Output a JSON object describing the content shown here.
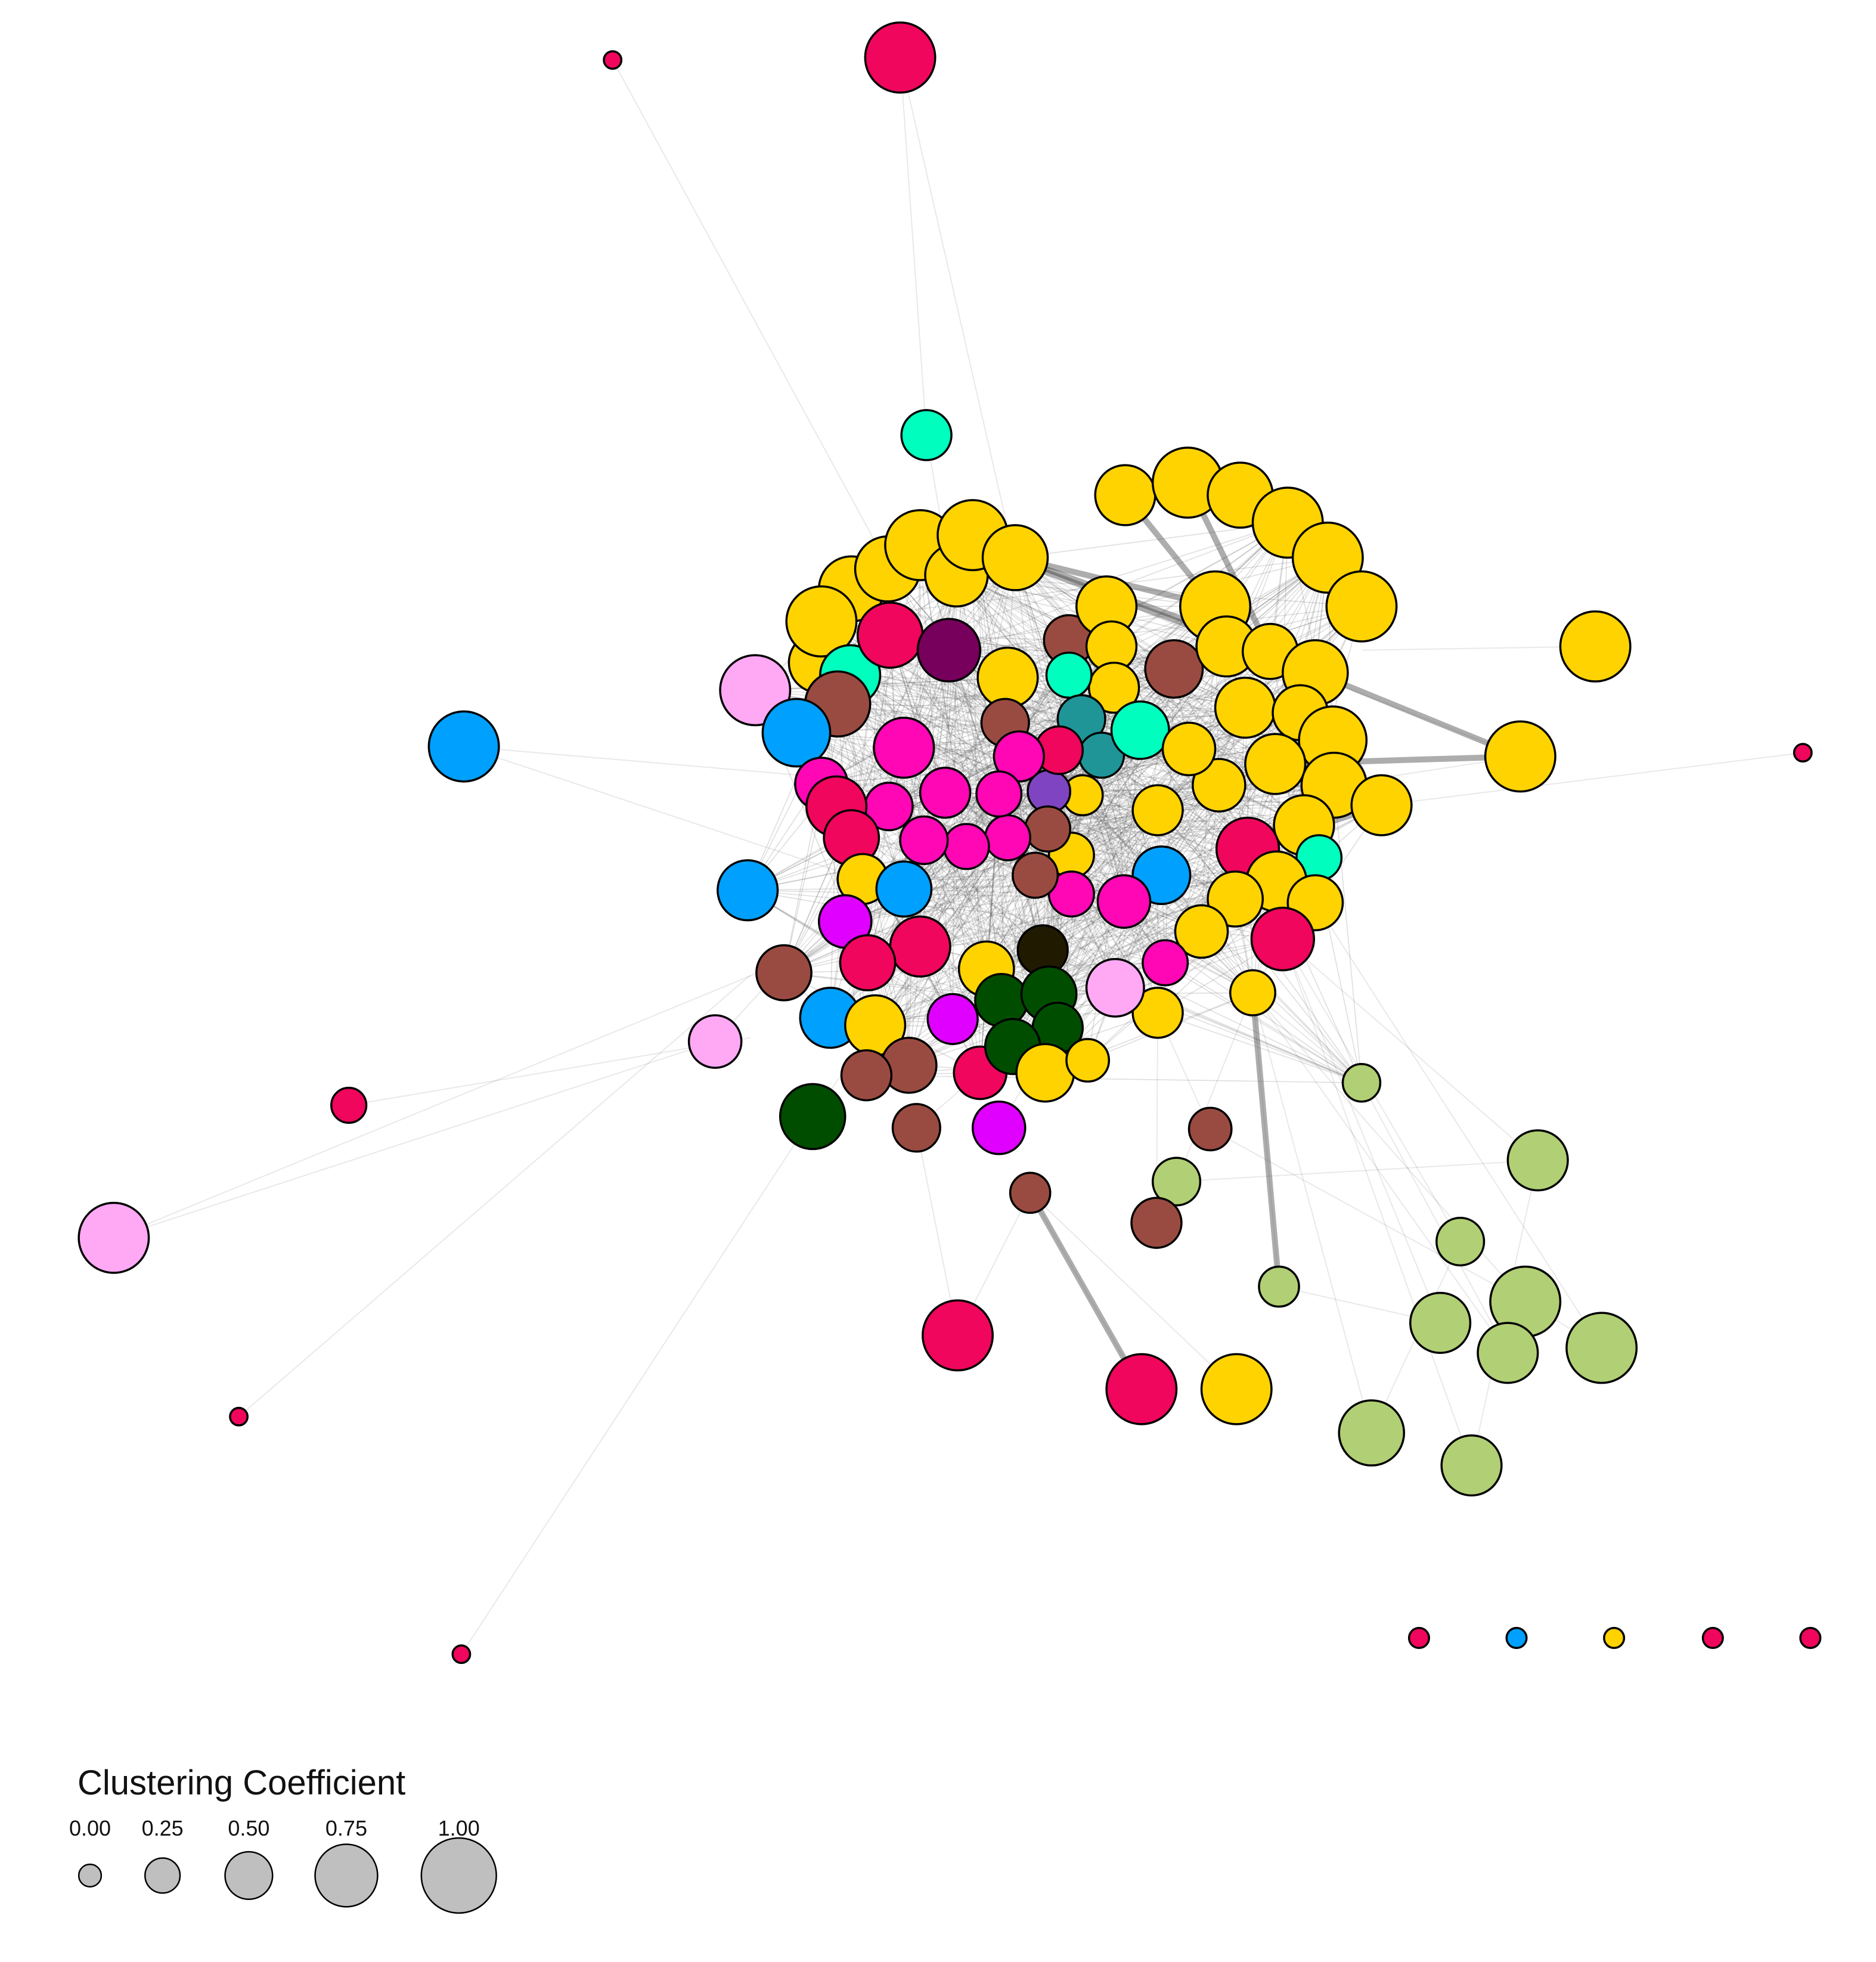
{
  "colors": {
    "gold": "#FFD300",
    "crimson": "#F0065C",
    "pink": "#FF07B5",
    "brown": "#9A4B41",
    "blue": "#00A0FF",
    "green": "#004D00",
    "lightgreen": "#B1CF74",
    "aqua": "#00FFBE",
    "teal": "#1F9598",
    "lightpink": "#FFA9F5",
    "magenta": "#E000FF",
    "plum": "#77005D",
    "violet": "#7F44C2",
    "black": "#201A01",
    "edge": "#4a4a4a",
    "legend_fill": "#bfbfbf"
  },
  "legend": {
    "title": "Clustering Coefficient",
    "ticks": [
      {
        "label": "0.00",
        "value": 0.0
      },
      {
        "label": "0.25",
        "value": 0.25
      },
      {
        "label": "0.50",
        "value": 0.5
      },
      {
        "label": "0.75",
        "value": 0.75
      },
      {
        "label": "1.00",
        "value": 1.0
      }
    ]
  }
}
